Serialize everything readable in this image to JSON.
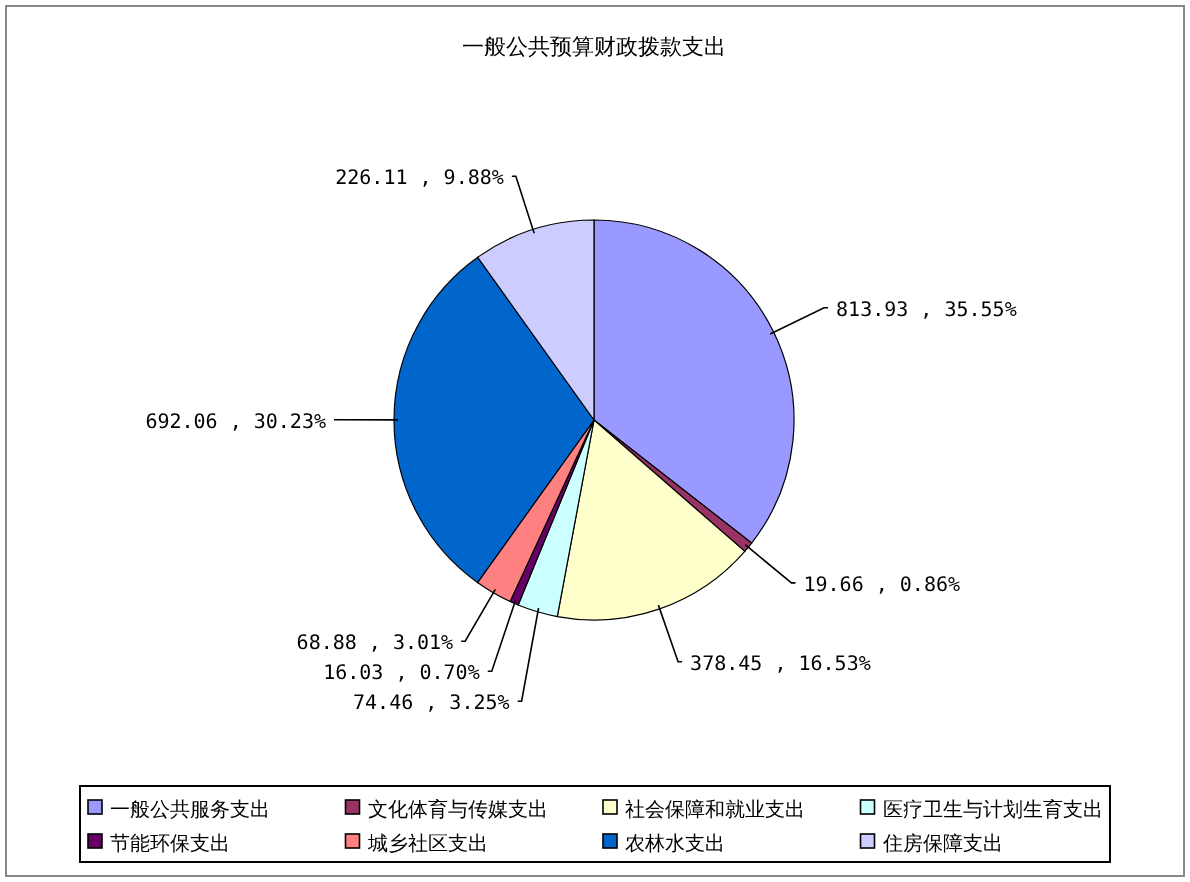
{
  "chart_data": {
    "type": "pie",
    "title": "一般公共预算财政拨款支出",
    "categories": [
      "一般公共服务支出",
      "文化体育与传媒支出",
      "社会保障和就业支出",
      "医疗卫生与计划生育支出",
      "节能环保支出",
      "城乡社区支出",
      "农林水支出",
      "住房保障支出"
    ],
    "values": [
      813.93,
      19.66,
      378.45,
      74.46,
      16.03,
      68.88,
      692.06,
      226.11
    ],
    "value_labels": [
      "813.93 , 35.55%",
      "19.66 , 0.86%",
      "378.45 , 16.53%",
      "74.46 , 3.25%",
      "16.03 , 0.70%",
      "68.88 , 3.01%",
      "692.06 , 30.23%",
      "226.11 , 9.88%"
    ],
    "colors": [
      "#9999ff",
      "#993366",
      "#ffffcc",
      "#ccffff",
      "#660066",
      "#ff8080",
      "#0066cc",
      "#ccccff"
    ],
    "legend": "bottom"
  }
}
